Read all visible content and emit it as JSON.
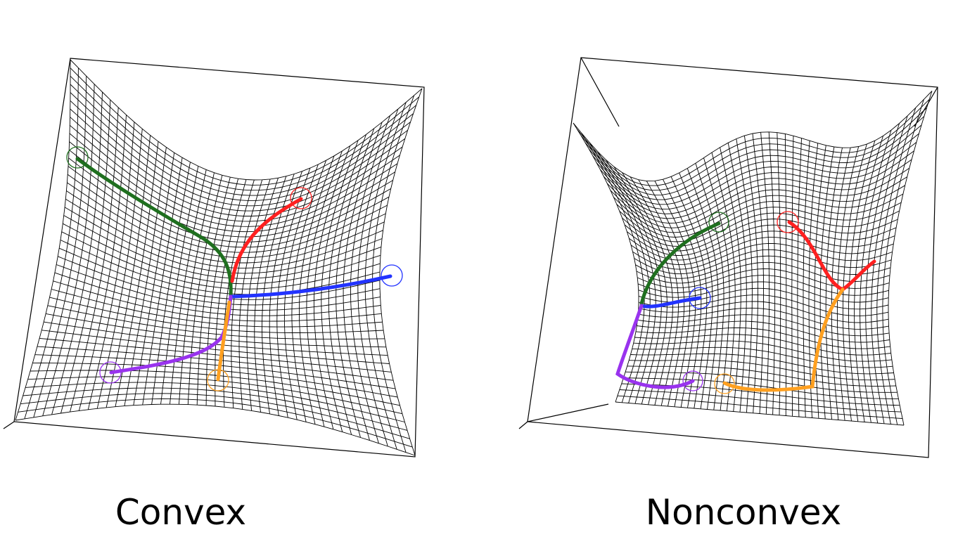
{
  "panels": [
    {
      "title": "Convex",
      "mesh_color": "#000000"
    },
    {
      "title": "Nonconvex",
      "mesh_color": "#000000"
    }
  ],
  "path_colors": {
    "green": "#1f6f1f",
    "red": "#ff2020",
    "blue": "#2233ff",
    "purple": "#9933ee",
    "orange": "#ffa020"
  }
}
